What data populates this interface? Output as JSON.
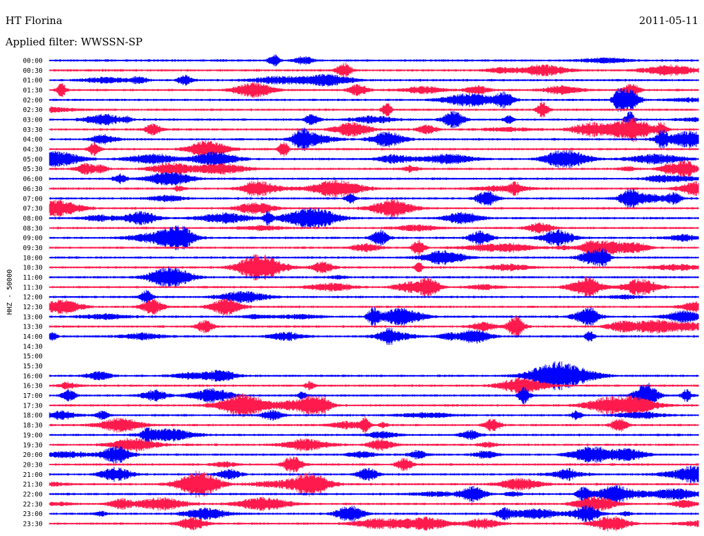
{
  "header": {
    "station": "HT Florina",
    "date": "2011-05-11",
    "filter_label": "Applied filter: WWSSN-SP"
  },
  "chart_data": {
    "type": "line",
    "title": "HT Florina",
    "subtitle": "Applied filter: WWSSN-SP",
    "date": "2011-05-11",
    "ylabel": "HHZ - 50000",
    "xlabel": "",
    "colors": [
      "#0000ff",
      "#ff1a4d"
    ],
    "grid": false,
    "legend": "none",
    "rows": [
      {
        "label": "00:00",
        "color": "#0000ff",
        "trace": true
      },
      {
        "label": "00:30",
        "color": "#ff1a4d",
        "trace": true
      },
      {
        "label": "01:00",
        "color": "#0000ff",
        "trace": true
      },
      {
        "label": "01:30",
        "color": "#ff1a4d",
        "trace": true
      },
      {
        "label": "02:00",
        "color": "#0000ff",
        "trace": true
      },
      {
        "label": "02:30",
        "color": "#ff1a4d",
        "trace": true
      },
      {
        "label": "03:00",
        "color": "#0000ff",
        "trace": true
      },
      {
        "label": "03:30",
        "color": "#ff1a4d",
        "trace": true
      },
      {
        "label": "04:00",
        "color": "#0000ff",
        "trace": true
      },
      {
        "label": "04:30",
        "color": "#ff1a4d",
        "trace": true
      },
      {
        "label": "05:00",
        "color": "#0000ff",
        "trace": true
      },
      {
        "label": "05:30",
        "color": "#ff1a4d",
        "trace": true
      },
      {
        "label": "06:00",
        "color": "#0000ff",
        "trace": true
      },
      {
        "label": "06:30",
        "color": "#ff1a4d",
        "trace": true
      },
      {
        "label": "07:00",
        "color": "#0000ff",
        "trace": true
      },
      {
        "label": "07:30",
        "color": "#ff1a4d",
        "trace": true
      },
      {
        "label": "08:00",
        "color": "#0000ff",
        "trace": true
      },
      {
        "label": "08:30",
        "color": "#ff1a4d",
        "trace": true
      },
      {
        "label": "09:00",
        "color": "#0000ff",
        "trace": true
      },
      {
        "label": "09:30",
        "color": "#ff1a4d",
        "trace": true
      },
      {
        "label": "10:00",
        "color": "#0000ff",
        "trace": true
      },
      {
        "label": "10:30",
        "color": "#ff1a4d",
        "trace": true
      },
      {
        "label": "11:00",
        "color": "#0000ff",
        "trace": true
      },
      {
        "label": "11:30",
        "color": "#ff1a4d",
        "trace": true
      },
      {
        "label": "12:00",
        "color": "#0000ff",
        "trace": true
      },
      {
        "label": "12:30",
        "color": "#ff1a4d",
        "trace": true
      },
      {
        "label": "13:00",
        "color": "#0000ff",
        "trace": true
      },
      {
        "label": "13:30",
        "color": "#ff1a4d",
        "trace": true
      },
      {
        "label": "14:00",
        "color": "#0000ff",
        "trace": true
      },
      {
        "label": "14:30",
        "color": "#ff1a4d",
        "trace": false
      },
      {
        "label": "15:00",
        "color": "#0000ff",
        "trace": false
      },
      {
        "label": "15:30",
        "color": "#ff1a4d",
        "trace": false
      },
      {
        "label": "16:00",
        "color": "#0000ff",
        "trace": true
      },
      {
        "label": "16:30",
        "color": "#ff1a4d",
        "trace": true
      },
      {
        "label": "17:00",
        "color": "#0000ff",
        "trace": true
      },
      {
        "label": "17:30",
        "color": "#ff1a4d",
        "trace": true
      },
      {
        "label": "18:00",
        "color": "#0000ff",
        "trace": true
      },
      {
        "label": "18:30",
        "color": "#ff1a4d",
        "trace": true
      },
      {
        "label": "19:00",
        "color": "#0000ff",
        "trace": true
      },
      {
        "label": "19:30",
        "color": "#ff1a4d",
        "trace": true
      },
      {
        "label": "20:00",
        "color": "#0000ff",
        "trace": true
      },
      {
        "label": "20:30",
        "color": "#ff1a4d",
        "trace": true
      },
      {
        "label": "21:00",
        "color": "#0000ff",
        "trace": true
      },
      {
        "label": "21:30",
        "color": "#ff1a4d",
        "trace": true
      },
      {
        "label": "22:00",
        "color": "#0000ff",
        "trace": true
      },
      {
        "label": "22:30",
        "color": "#ff1a4d",
        "trace": true
      },
      {
        "label": "23:00",
        "color": "#0000ff",
        "trace": true
      },
      {
        "label": "23:30",
        "color": "#ff1a4d",
        "trace": true
      }
    ]
  }
}
